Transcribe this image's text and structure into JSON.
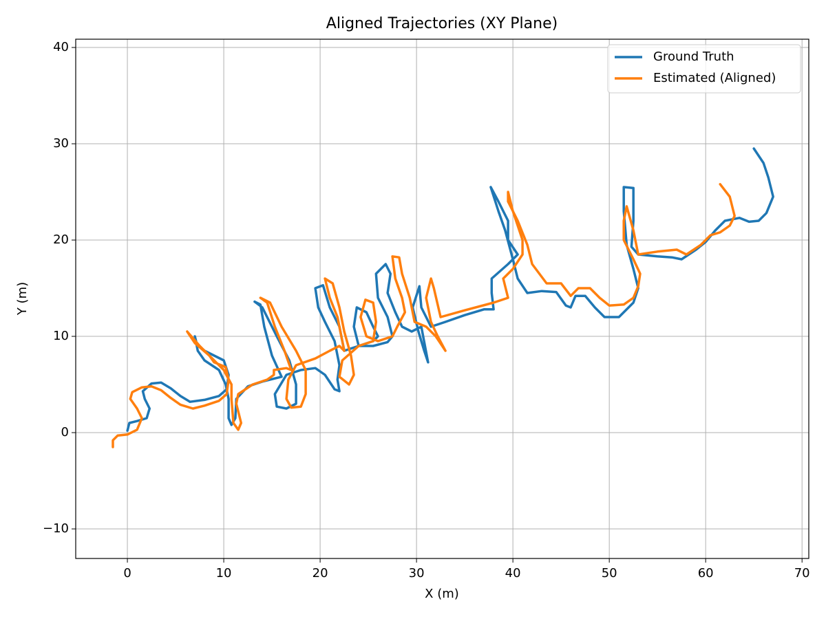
{
  "chart_data": {
    "type": "line",
    "title": "Aligned Trajectories (XY Plane)",
    "x_label": "X (m)",
    "y_label": "Y (m)",
    "xlim": [
      -5.36,
      70.7
    ],
    "ylim": [
      -13.07,
      40.86
    ],
    "xticks": [
      0,
      10,
      20,
      30,
      40,
      50,
      60,
      70
    ],
    "yticks": [
      {
        "value": -10,
        "label": "−10"
      },
      0,
      10,
      20,
      30,
      40
    ],
    "grid": true,
    "legend": "upper right",
    "series": [
      {
        "name": "Ground Truth",
        "color": "#1f77b4",
        "x": [
          0,
          0.2,
          1,
          2,
          2.3,
          1.8,
          1.6,
          2.5,
          3.5,
          4.5,
          5.5,
          6.5,
          8,
          9.5,
          10.3,
          10.5,
          10,
          9,
          8,
          7.2,
          7,
          7.3,
          8,
          9.5,
          10.2,
          10.5,
          10.5,
          10.8,
          11.2,
          11.3,
          12.5,
          14,
          15.2,
          16,
          15,
          14.2,
          13.8,
          13.2,
          14,
          15.5,
          16.8,
          17.5,
          17.5,
          16.5,
          15.5,
          15.3,
          16.5,
          18,
          19.5,
          20.5,
          21.5,
          22,
          21.8,
          22,
          21.5,
          20.5,
          19.8,
          19.5,
          20.3,
          21,
          22,
          22.5,
          24,
          25.5,
          26,
          25.5,
          24.8,
          23.8,
          23.5,
          24,
          25.5,
          27,
          27.5,
          27,
          26,
          25.8,
          26.8,
          27.3,
          27,
          27.8,
          28.5,
          29.5,
          30.5,
          31.2,
          30.8,
          30.2,
          29.6,
          30.3,
          30.5,
          31.5,
          33,
          35,
          37,
          38,
          37.8,
          37.8,
          39.5,
          40.5,
          39.5,
          39.5,
          38.5,
          37.7,
          38.5,
          39.2,
          40,
          40.5,
          41.5,
          43,
          44.5,
          45.5,
          46,
          46.5,
          47.5,
          48.5,
          49.5,
          51,
          52.5,
          53,
          52.5,
          51.8,
          51.5,
          51.5,
          52.5,
          52.5,
          52.3,
          53,
          55,
          56.5,
          57.5,
          59,
          60,
          61,
          62,
          63.5,
          64.5,
          65.5,
          66.3,
          67,
          66.5,
          66,
          65
        ],
        "values": [
          0.2,
          1,
          1.2,
          1.5,
          2.5,
          3.5,
          4.3,
          5.1,
          5.2,
          4.6,
          3.8,
          3.2,
          3.4,
          3.8,
          4.5,
          6,
          7.5,
          8,
          8.5,
          9.2,
          10,
          8.5,
          7.5,
          6.5,
          5,
          3.5,
          1.5,
          0.8,
          1.5,
          3.5,
          4.8,
          5.3,
          5.6,
          5.8,
          8,
          11,
          13.3,
          13.6,
          13,
          10,
          7.5,
          5,
          3,
          2.5,
          2.7,
          4,
          6,
          6.5,
          6.7,
          6,
          4.5,
          4.3,
          5.5,
          7,
          9.5,
          11.5,
          13,
          15,
          15.3,
          13,
          11,
          8.5,
          9,
          9.5,
          10,
          11,
          12.5,
          13,
          11,
          9,
          9,
          9.4,
          10,
          12,
          14,
          16.5,
          17.5,
          16.5,
          14.5,
          12.5,
          11,
          10.5,
          11,
          7.3,
          8.5,
          10.5,
          13,
          15.2,
          13,
          11,
          11.5,
          12.2,
          12.8,
          12.8,
          14.5,
          16,
          17.5,
          18.5,
          20,
          22,
          24,
          25.5,
          23,
          21,
          18,
          16,
          14.5,
          14.7,
          14.6,
          13.2,
          13,
          14.2,
          14.2,
          13,
          12,
          12,
          13.5,
          15,
          17,
          19.5,
          23,
          25.5,
          25.4,
          22,
          19.3,
          18.5,
          18.3,
          18.2,
          18,
          19,
          19.8,
          21,
          22,
          22.3,
          21.9,
          22,
          22.8,
          24.5,
          26.5,
          28,
          29.5
        ]
      },
      {
        "name": "Estimated (Aligned)",
        "color": "#ff7f0e",
        "x": [
          -1.5,
          -1.5,
          -1,
          0,
          1,
          1.5,
          1,
          0.3,
          0.5,
          1.5,
          2.5,
          3.5,
          4.5,
          5.5,
          6.8,
          8,
          9.5,
          10.3,
          10.5,
          10.2,
          9,
          8.5,
          7.5,
          6.2,
          7,
          8.5,
          10,
          10.8,
          10.8,
          11,
          11.5,
          11.8,
          11.3,
          11.5,
          13,
          14.5,
          15.2,
          15.2,
          16.5,
          17,
          16.3,
          15.3,
          14.5,
          13.8,
          14.8,
          16,
          17.5,
          18.5,
          18.5,
          18,
          17,
          16.5,
          16.7,
          17.5,
          19.5,
          21,
          22,
          22.5,
          21.8,
          21,
          20.5,
          21.3,
          22,
          22.5,
          23.2,
          23.5,
          23,
          22,
          22.3,
          24,
          25.5,
          25.8,
          25.5,
          24.7,
          24.2,
          24.8,
          26,
          27.5,
          28,
          28.8,
          28.5,
          27.8,
          27.5,
          28.2,
          28.5,
          29.3,
          29.8,
          31,
          32,
          33,
          32.2,
          31.5,
          31,
          31.5,
          31.8,
          32.5,
          35,
          38,
          39.5,
          39,
          40,
          41,
          41,
          40.5,
          40,
          39.5,
          39.5,
          40.5,
          41.5,
          42,
          43.5,
          45,
          46,
          46.8,
          48,
          49,
          50,
          51.5,
          52.5,
          53,
          53.2,
          52.5,
          51.5,
          51.5,
          51.8,
          52.5,
          53,
          55,
          57,
          58,
          59.5,
          60.5,
          61.5,
          62.5,
          63,
          62.5,
          61.5
        ],
        "values": [
          -1.5,
          -0.8,
          -0.3,
          -0.2,
          0.3,
          1.5,
          2.5,
          3.5,
          4.2,
          4.7,
          4.8,
          4.4,
          3.6,
          2.9,
          2.5,
          2.8,
          3.3,
          4,
          5.5,
          6.8,
          7.3,
          8,
          9,
          10.5,
          9.3,
          8,
          6.5,
          5,
          3.5,
          1,
          0.3,
          1,
          3,
          4,
          5,
          5.5,
          6,
          6.5,
          6.7,
          6.5,
          8.5,
          11,
          13.5,
          14,
          13.5,
          11,
          8.5,
          6.5,
          4,
          2.7,
          2.6,
          3.5,
          5.5,
          7,
          7.7,
          8.5,
          9,
          8.5,
          12,
          14,
          16,
          15.5,
          13,
          10.5,
          8,
          6,
          5,
          5.8,
          7.5,
          9,
          9.5,
          11.5,
          13.5,
          13.8,
          12,
          10,
          9.5,
          10,
          11,
          12.5,
          14,
          16,
          18.3,
          18.2,
          16.5,
          14,
          11.5,
          11,
          10,
          8.5,
          10,
          11.5,
          14,
          16,
          15,
          12,
          12.7,
          13.5,
          14,
          16,
          17,
          18.5,
          20,
          21.5,
          23,
          25,
          24,
          22,
          19.5,
          17.5,
          15.5,
          15.5,
          14.2,
          15,
          15,
          14,
          13.2,
          13.3,
          14,
          15.2,
          16.5,
          18,
          20,
          22,
          23.5,
          21,
          18.5,
          18.8,
          19,
          18.5,
          19.5,
          20.5,
          20.8,
          21.5,
          22.5,
          24.5,
          25.8
        ]
      }
    ]
  }
}
